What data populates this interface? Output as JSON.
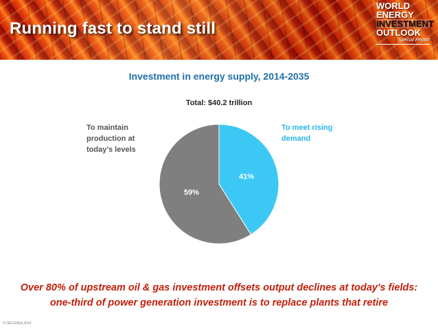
{
  "header": {
    "title": "Running fast to stand still",
    "logo": {
      "line1": "WORLD",
      "line2": "ENERGY",
      "line3": "INVESTMENT",
      "line4": "OUTLOOK",
      "subtitle": "Special Report"
    }
  },
  "chart_data": {
    "type": "pie",
    "title": "Investment in energy supply, 2014-2035",
    "subtitle": "Total: $40.2 trillion",
    "slices": [
      {
        "name": "To meet rising demand",
        "value": 41,
        "label": "41%",
        "color": "#3cc8f5"
      },
      {
        "name": "To maintain production at today’s levels",
        "value": 59,
        "label": "59%",
        "color": "#7f7f7f"
      }
    ],
    "legend": {
      "left": [
        "To maintain",
        "production at",
        "today’s levels"
      ],
      "right": [
        "To meet rising",
        "demand"
      ]
    }
  },
  "caption": {
    "line1": "Over 80% of upstream oil & gas investment offsets output declines at today's fields:",
    "line2": "one-third of power generation investment is to replace plants that retire"
  },
  "footer": {
    "copyright": "© OECD/IEA 2014"
  },
  "colors": {
    "title_blue": "#1f6fa8",
    "accent_red": "#c0200a",
    "demand_cyan": "#3cc8f5",
    "maintain_gray": "#7f7f7f"
  }
}
